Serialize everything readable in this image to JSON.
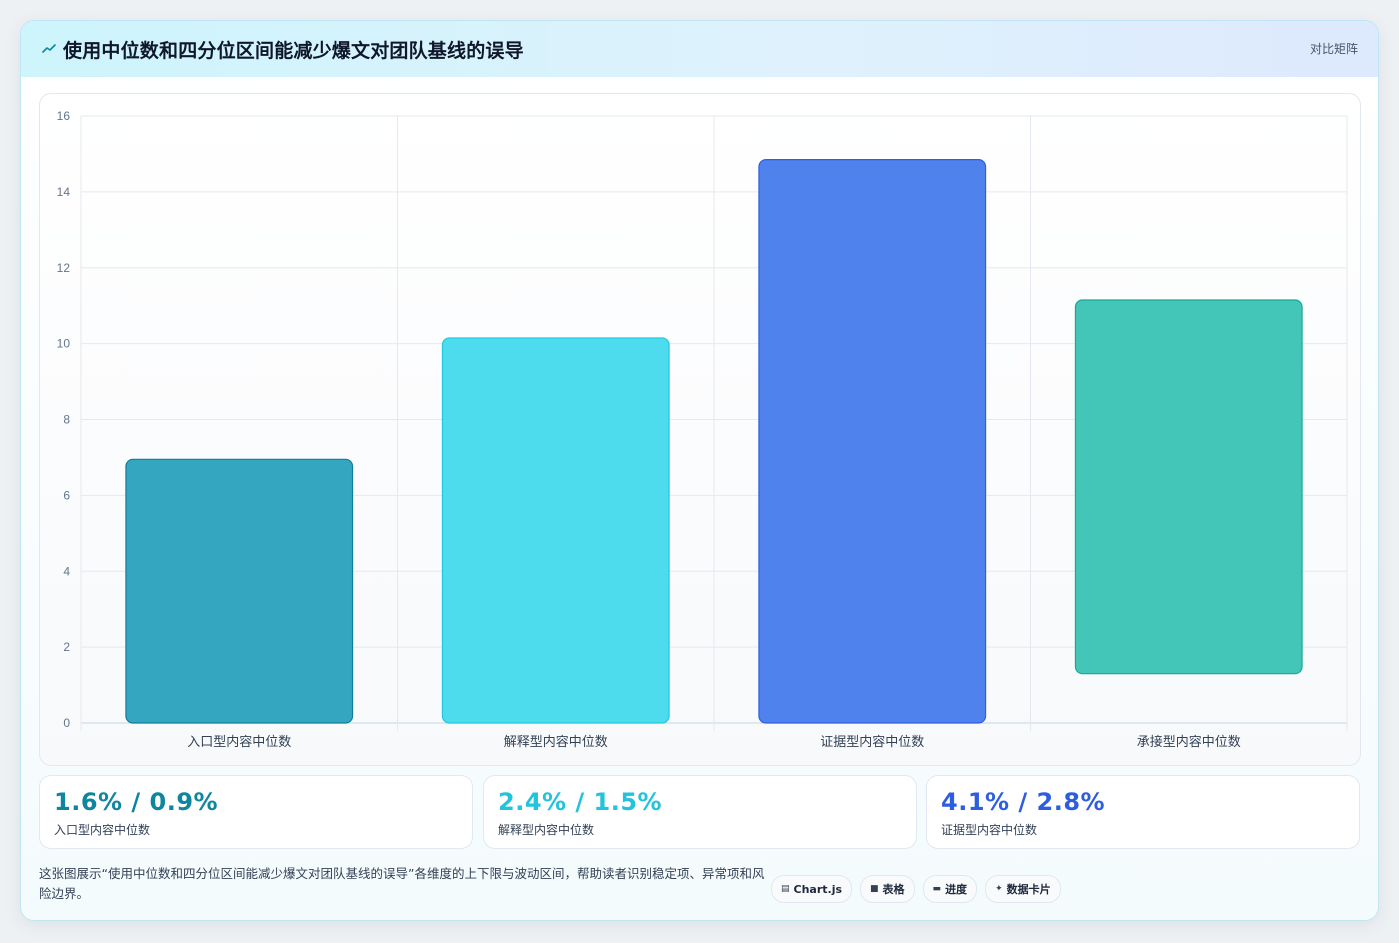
{
  "header": {
    "title": "使用中位数和四分位区间能减少爆文对团队基线的误导",
    "right_label": "对比矩阵",
    "icon": "trend-icon"
  },
  "chart_data": {
    "type": "bar",
    "floating": true,
    "categories": [
      "入口型内容中位数",
      "解释型内容中位数",
      "证据型内容中位数",
      "承接型内容中位数"
    ],
    "series": [
      {
        "values": [
          [
            0,
            6.95
          ],
          [
            0,
            10.15
          ],
          [
            0,
            14.85
          ],
          [
            1.3,
            11.15
          ]
        ]
      }
    ],
    "colors": [
      "#35a6c0",
      "#4ddcee",
      "#5082ee",
      "#43c6b8"
    ],
    "border_colors": [
      "#0e7f98",
      "#22c7df",
      "#2f5fe0",
      "#18a895"
    ],
    "ylim": [
      0,
      16
    ],
    "yticks": [
      0,
      2,
      4,
      6,
      8,
      10,
      12,
      14,
      16
    ],
    "grid": true,
    "legend": "none"
  },
  "stats": [
    {
      "value": "1.6% / 0.9%",
      "label": "入口型内容中位数",
      "color": "#0e86a0"
    },
    {
      "value": "2.4% / 1.5%",
      "label": "解释型内容中位数",
      "color": "#22c3dd"
    },
    {
      "value": "4.1% / 2.8%",
      "label": "证据型内容中位数",
      "color": "#2d5ee0"
    }
  ],
  "note": "这张图展示“使用中位数和四分位区间能减少爆文对团队基线的误导”各维度的上下限与波动区间，帮助读者识别稳定项、异常项和风险边界。",
  "tags": [
    {
      "icon": "chart-icon",
      "glyph": "▤",
      "label": "Chart.js"
    },
    {
      "icon": "table-icon",
      "glyph": "■",
      "label": "表格"
    },
    {
      "icon": "progress-icon",
      "glyph": "▬",
      "label": "进度"
    },
    {
      "icon": "card-icon",
      "glyph": "✦",
      "label": "数据卡片"
    }
  ]
}
